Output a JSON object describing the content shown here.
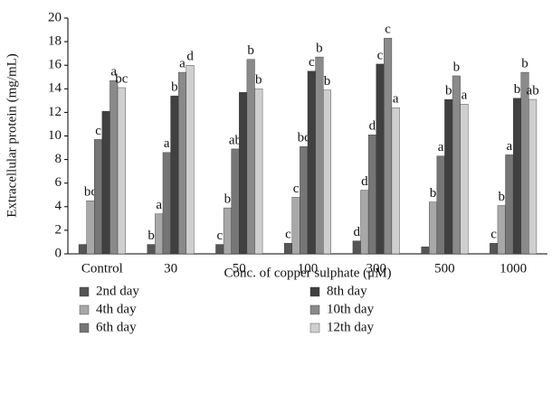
{
  "chart_data": {
    "type": "bar",
    "y_label": "Extracellular protein (mg/mL)",
    "x_label": "Conc. of copper sulphate (μM)",
    "categories": [
      "Control",
      "30",
      "50",
      "100",
      "300",
      "500",
      "1000"
    ],
    "series": [
      {
        "name": "2nd day",
        "color": "#555555",
        "values": [
          0.8,
          0.8,
          0.8,
          0.9,
          1.1,
          0.6,
          0.9
        ],
        "letters": [
          null,
          "b",
          "c",
          "c",
          "d",
          null,
          "c"
        ]
      },
      {
        "name": "4th day",
        "color": "#a8a8a8",
        "values": [
          4.5,
          3.4,
          3.9,
          4.8,
          5.4,
          4.4,
          4.1
        ],
        "letters": [
          "bc",
          "a",
          "b",
          "c",
          "d",
          "b",
          "b"
        ]
      },
      {
        "name": "6th day",
        "color": "#767676",
        "values": [
          9.7,
          8.6,
          8.9,
          9.1,
          10.1,
          8.3,
          8.4
        ],
        "letters": [
          "c",
          "a",
          "ab",
          "bc",
          "d",
          "a",
          "a"
        ]
      },
      {
        "name": "8th day",
        "color": "#404040",
        "values": [
          12.1,
          13.4,
          13.7,
          15.5,
          16.1,
          13.1,
          13.2
        ],
        "letters": [
          null,
          "b",
          null,
          "c",
          "c",
          "b",
          "b"
        ]
      },
      {
        "name": "10th day",
        "color": "#8a8a8a",
        "values": [
          14.7,
          15.4,
          16.5,
          16.7,
          18.3,
          15.1,
          15.4
        ],
        "letters": [
          "a",
          "a",
          "b",
          "b",
          "c",
          "b",
          "b"
        ]
      },
      {
        "name": "12th day",
        "color": "#cfcfcf",
        "values": [
          14.1,
          16.0,
          14.0,
          13.9,
          12.4,
          12.7,
          13.1
        ],
        "letters": [
          "bc",
          "d",
          "b",
          "b",
          "a",
          "a",
          "ab"
        ]
      }
    ],
    "ylim": [
      0,
      20
    ],
    "yticks": [
      0,
      2,
      4,
      6,
      8,
      10,
      12,
      14,
      16,
      18,
      20
    ]
  }
}
